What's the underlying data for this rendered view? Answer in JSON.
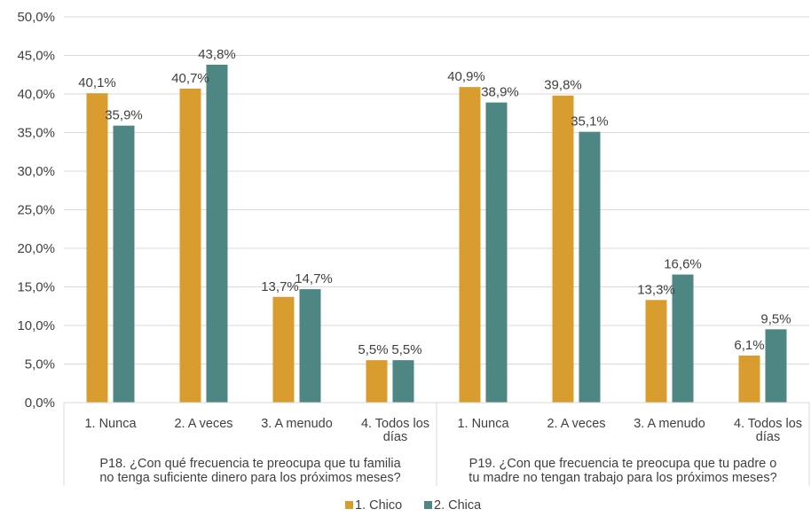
{
  "chart_data": {
    "type": "bar",
    "ylim": [
      0,
      50
    ],
    "y_ticks": [
      "0,0%",
      "5,0%",
      "10,0%",
      "15,0%",
      "20,0%",
      "25,0%",
      "30,0%",
      "35,0%",
      "40,0%",
      "45,0%",
      "50,0%"
    ],
    "grid": true,
    "legend_position": "bottom",
    "groups": [
      {
        "label_lines": [
          "P18. ¿Con qué frecuencia te preocupa que tu familia",
          "no tenga suficiente dinero para los próximos meses?"
        ],
        "categories": [
          {
            "label_lines": [
              "1. Nunca"
            ]
          },
          {
            "label_lines": [
              "2. A veces"
            ]
          },
          {
            "label_lines": [
              "3. A menudo"
            ]
          },
          {
            "label_lines": [
              "4. Todos los",
              "días"
            ]
          }
        ]
      },
      {
        "label_lines": [
          "P19. ¿Con que frecuencia te preocupa que tu padre o",
          "tu madre no tengan trabajo para los próximos meses?"
        ],
        "categories": [
          {
            "label_lines": [
              "1. Nunca"
            ]
          },
          {
            "label_lines": [
              "2. A veces"
            ]
          },
          {
            "label_lines": [
              "3. A menudo"
            ]
          },
          {
            "label_lines": [
              "4. Todos los",
              "días"
            ]
          }
        ]
      }
    ],
    "series": [
      {
        "name": "1. Chico",
        "color": "#D89D2E",
        "values": [
          40.1,
          40.7,
          13.7,
          5.5,
          40.9,
          39.8,
          13.3,
          6.1
        ],
        "labels": [
          "40,1%",
          "40,7%",
          "13,7%",
          "5,5%",
          "40,9%",
          "39,8%",
          "13,3%",
          "6,1%"
        ]
      },
      {
        "name": "2. Chica",
        "color": "#4D8682",
        "values": [
          35.9,
          43.8,
          14.7,
          5.5,
          38.9,
          35.1,
          16.6,
          9.5
        ],
        "labels": [
          "35,9%",
          "43,8%",
          "14,7%",
          "5,5%",
          "38,9%",
          "35,1%",
          "16,6%",
          "9,5%"
        ]
      }
    ]
  }
}
